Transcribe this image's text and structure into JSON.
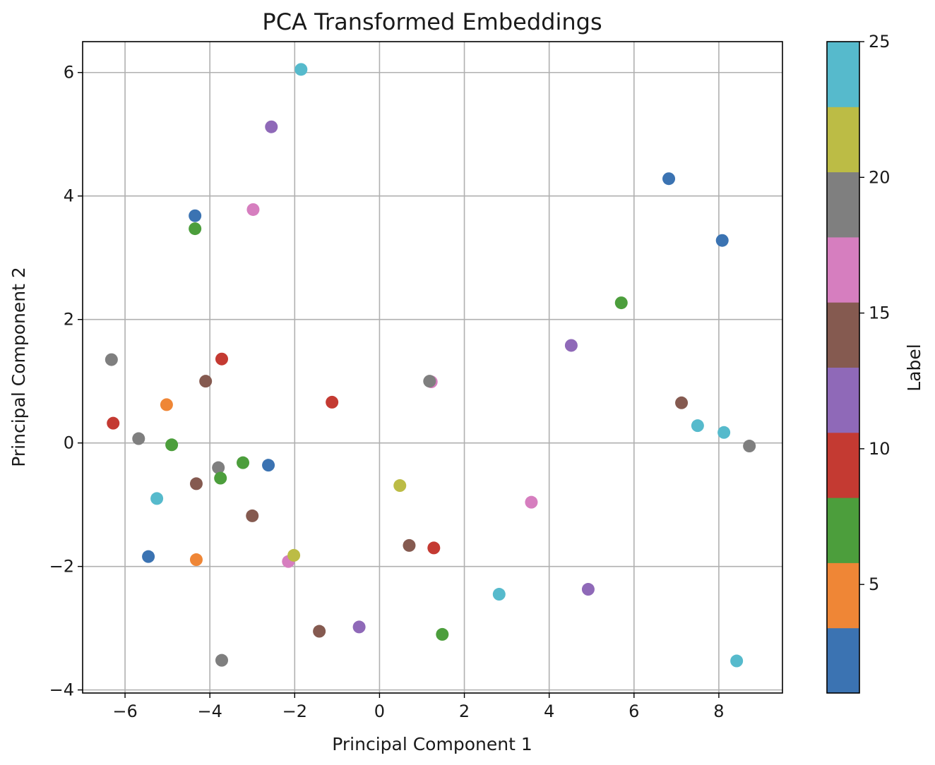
{
  "chart_data": {
    "type": "scatter",
    "title": "PCA Transformed Embeddings",
    "xlabel": "Principal Component 1",
    "ylabel": "Principal Component 2",
    "xlim": [
      -7.0,
      9.5
    ],
    "ylim": [
      -4.05,
      6.5
    ],
    "xticks": [
      -6,
      -4,
      -2,
      0,
      2,
      4,
      6,
      8
    ],
    "xtick_labels": [
      "−6",
      "−4",
      "−2",
      "0",
      "2",
      "4",
      "6",
      "8"
    ],
    "yticks": [
      -4,
      -2,
      0,
      2,
      4,
      6
    ],
    "ytick_labels": [
      "−4",
      "−2",
      "0",
      "2",
      "4",
      "6"
    ],
    "grid": true,
    "colorbar": {
      "label": "Label",
      "range": [
        1,
        25
      ],
      "ticks": [
        5,
        10,
        15,
        20,
        25
      ],
      "tick_labels": [
        "5",
        "10",
        "15",
        "20",
        "25"
      ],
      "colors": [
        "#3b73b2",
        "#ef8636",
        "#4c9e3c",
        "#c43a32",
        "#8f69b8",
        "#855a50",
        "#d67ebf",
        "#7f7f7f",
        "#bcbc45",
        "#56bacc"
      ]
    },
    "points": [
      {
        "x": -1.85,
        "y": 6.05,
        "label": 25
      },
      {
        "x": -2.55,
        "y": 5.12,
        "label": 12
      },
      {
        "x": -4.35,
        "y": 3.68,
        "label": 1
      },
      {
        "x": -2.98,
        "y": 3.78,
        "label": 17
      },
      {
        "x": -4.35,
        "y": 3.47,
        "label": 8
      },
      {
        "x": 6.82,
        "y": 4.28,
        "label": 1
      },
      {
        "x": 8.08,
        "y": 3.28,
        "label": 2
      },
      {
        "x": 5.7,
        "y": 2.27,
        "label": 7
      },
      {
        "x": 4.52,
        "y": 1.58,
        "label": 11
      },
      {
        "x": -6.32,
        "y": 1.35,
        "label": 20
      },
      {
        "x": -3.72,
        "y": 1.36,
        "label": 9
      },
      {
        "x": -4.1,
        "y": 1.0,
        "label": 14
      },
      {
        "x": 1.22,
        "y": 0.99,
        "label": 17
      },
      {
        "x": 1.18,
        "y": 1.0,
        "label": 19
      },
      {
        "x": -1.12,
        "y": 0.66,
        "label": 10
      },
      {
        "x": -5.02,
        "y": 0.62,
        "label": 5
      },
      {
        "x": 7.12,
        "y": 0.65,
        "label": 15
      },
      {
        "x": -6.28,
        "y": 0.32,
        "label": 9
      },
      {
        "x": 7.5,
        "y": 0.28,
        "label": 24
      },
      {
        "x": 8.12,
        "y": 0.17,
        "label": 24
      },
      {
        "x": -5.68,
        "y": 0.07,
        "label": 19
      },
      {
        "x": -4.9,
        "y": -0.03,
        "label": 8
      },
      {
        "x": 8.72,
        "y": -0.05,
        "label": 20
      },
      {
        "x": -3.8,
        "y": -0.4,
        "label": 19
      },
      {
        "x": -3.22,
        "y": -0.32,
        "label": 7
      },
      {
        "x": -2.62,
        "y": -0.36,
        "label": 2
      },
      {
        "x": -3.75,
        "y": -0.57,
        "label": 7
      },
      {
        "x": -4.32,
        "y": -0.66,
        "label": 15
      },
      {
        "x": 0.48,
        "y": -0.69,
        "label": 21
      },
      {
        "x": -5.25,
        "y": -0.9,
        "label": 24
      },
      {
        "x": 3.58,
        "y": -0.96,
        "label": 17
      },
      {
        "x": -3.0,
        "y": -1.18,
        "label": 15
      },
      {
        "x": 0.7,
        "y": -1.66,
        "label": 14
      },
      {
        "x": 1.28,
        "y": -1.7,
        "label": 10
      },
      {
        "x": -5.45,
        "y": -1.84,
        "label": 1
      },
      {
        "x": -4.32,
        "y": -1.89,
        "label": 4
      },
      {
        "x": -2.15,
        "y": -1.92,
        "label": 17
      },
      {
        "x": -2.02,
        "y": -1.82,
        "label": 21
      },
      {
        "x": 2.82,
        "y": -2.45,
        "label": 24
      },
      {
        "x": 4.92,
        "y": -2.37,
        "label": 12
      },
      {
        "x": -1.42,
        "y": -3.05,
        "label": 14
      },
      {
        "x": -0.48,
        "y": -2.98,
        "label": 11
      },
      {
        "x": 1.48,
        "y": -3.1,
        "label": 6
      },
      {
        "x": -3.72,
        "y": -3.52,
        "label": 19
      },
      {
        "x": 8.42,
        "y": -3.53,
        "label": 25
      }
    ]
  }
}
